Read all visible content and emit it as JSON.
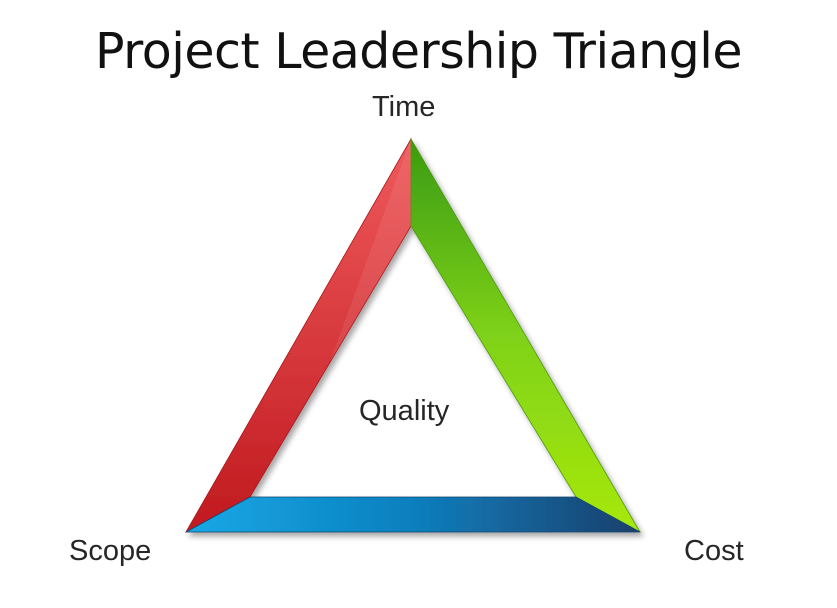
{
  "title": "Project Leadership Triangle",
  "corners": {
    "top": "Time",
    "bottom_left": "Scope",
    "bottom_right": "Cost"
  },
  "center": "Quality",
  "colors": {
    "left_side": "#d93a3d",
    "right_side": "#6cc21a",
    "bottom_side": "#1a7bbf"
  }
}
